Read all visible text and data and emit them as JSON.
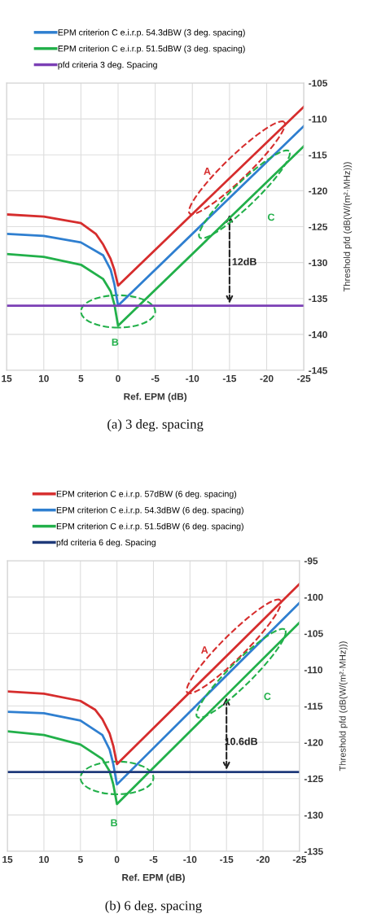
{
  "chart_data": [
    {
      "type": "line",
      "xlabel": "Ref. EPM (dB)",
      "ylabel": "Threshold pfd (dB(W/(m²·MHz)))",
      "xlim": [
        15,
        -25
      ],
      "xticks": [
        15,
        10,
        5,
        0,
        -5,
        -10,
        -15,
        -20,
        -25
      ],
      "ylim": [
        -145,
        -105
      ],
      "yticks": [
        -145,
        -140,
        -135,
        -130,
        -125,
        -120,
        -115,
        -110,
        -105
      ],
      "grid": true,
      "legend": "top",
      "marker": "none",
      "line_style": "solid",
      "series": [
        {
          "color": "#d62d2d",
          "x": [
            15,
            10,
            5,
            3,
            2,
            1,
            0.5,
            0,
            -25
          ],
          "values": [
            -123.3,
            -123.6,
            -124.5,
            -126,
            -127.5,
            -129.5,
            -131,
            -133.2,
            -108.3
          ]
        },
        {
          "name": "EPM criterion C e.i.r.p. 54.3dBW (3 deg. spacing)",
          "color": "#2f7fd0",
          "x": [
            15,
            10,
            5,
            2,
            1,
            0.5,
            0,
            -25
          ],
          "values": [
            -126,
            -126.3,
            -127.2,
            -129,
            -131,
            -133,
            -136,
            -111
          ]
        },
        {
          "name": "EPM criterion C e.i.r.p. 51.5dBW (3 deg. spacing)",
          "color": "#22b04a",
          "x": [
            15,
            10,
            5,
            2,
            1,
            0.5,
            0,
            -25
          ],
          "values": [
            -128.8,
            -129.2,
            -130.3,
            -132.3,
            -134,
            -135.8,
            -138.8,
            -113.8
          ]
        },
        {
          "name": "pfd criteria 3 deg. Spacing",
          "color": "#7b3fb5",
          "x": [
            15,
            -25
          ],
          "values": [
            -136,
            -136
          ]
        }
      ],
      "annotations": [
        "A",
        "B",
        "C",
        "12dB",
        "(a) 3 deg. spacing"
      ]
    },
    {
      "type": "line",
      "xlabel": "Ref. EPM (dB)",
      "ylabel": "Threshold pfd (dB(W/(m²·MHz)))",
      "xlim": [
        15,
        -25
      ],
      "xticks": [
        15,
        10,
        5,
        0,
        -5,
        -10,
        -15,
        -20,
        -25
      ],
      "ylim": [
        -135,
        -95
      ],
      "yticks": [
        -135,
        -130,
        -125,
        -120,
        -115,
        -110,
        -105,
        -100,
        -95
      ],
      "grid": true,
      "legend": "top",
      "marker": "none",
      "line_style": "solid",
      "series": [
        {
          "name": "EPM criterion C e.i.r.p. 57dBW (6 deg. spacing)",
          "color": "#d62d2d",
          "x": [
            15,
            10,
            5,
            3,
            2,
            1,
            0.5,
            0,
            -25
          ],
          "values": [
            -113,
            -113.3,
            -114.3,
            -115.5,
            -116.8,
            -118.8,
            -120.5,
            -123,
            -98.2
          ]
        },
        {
          "name": "EPM criterion C e.i.r.p. 54.3dBW (6 deg. spacing)",
          "color": "#2f7fd0",
          "x": [
            15,
            10,
            5,
            2,
            1,
            0.5,
            0,
            -25
          ],
          "values": [
            -115.8,
            -116,
            -117,
            -119,
            -121,
            -123,
            -125.8,
            -100.8
          ]
        },
        {
          "name": "EPM criterion C e.i.r.p. 51.5dBW (6 deg. spacing)",
          "color": "#22b04a",
          "x": [
            15,
            10,
            5,
            2,
            1,
            0.5,
            0,
            -25
          ],
          "values": [
            -118.5,
            -119,
            -120.3,
            -122.3,
            -124,
            -125.8,
            -128.5,
            -103.5
          ]
        },
        {
          "name": "pfd criteria 6 deg. Spacing",
          "color": "#1f3a7a",
          "x": [
            15,
            -25
          ],
          "values": [
            -124.1,
            -124.1
          ]
        }
      ],
      "annotations": [
        "A",
        "B",
        "C",
        "10.6dB",
        "(b) 6 deg. spacing"
      ]
    }
  ]
}
